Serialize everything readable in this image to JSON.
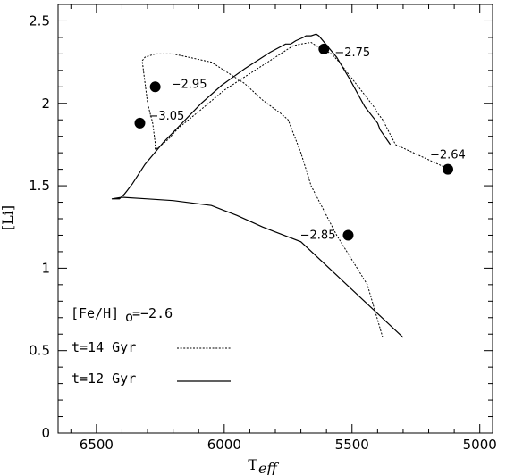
{
  "chart_data": {
    "type": "line",
    "xlabel": "T",
    "xlabel_sub": "eff",
    "ylabel": "[Li]",
    "xlim": [
      6650,
      4950
    ],
    "ylim": [
      0,
      2.6
    ],
    "x_reversed": true,
    "grid": false,
    "xticks": [
      6500,
      6000,
      5500,
      5000
    ],
    "xtick_labels": [
      "6500",
      "6000",
      "5500",
      "5000"
    ],
    "yticks": [
      0,
      0.5,
      1,
      1.5,
      2,
      2.5
    ],
    "ytick_labels": [
      "0",
      "0.5",
      "1",
      "1.5",
      "2",
      "2.5"
    ],
    "legend": {
      "position": "bottom-left",
      "header": "[Fe/H]",
      "header_sub": "o",
      "header_value": "=−2.6",
      "entries": [
        {
          "label": "t=14 Gyr",
          "style": "dotted"
        },
        {
          "label": "t=12 Gyr",
          "style": "solid"
        }
      ]
    },
    "series": [
      {
        "name": "t=12 Gyr",
        "style": "solid",
        "x": [
          5300,
          5700,
          5800,
          5850,
          5950,
          6000,
          6050,
          6200,
          6300,
          6400,
          6440,
          6430,
          6420,
          6410,
          6390,
          6380,
          6370,
          6360,
          6310,
          6240,
          6090,
          6010,
          5920,
          5820,
          5760,
          5740,
          5720,
          5690,
          5680,
          5660,
          5640,
          5630,
          5560,
          5510,
          5450,
          5400,
          5390,
          5350
        ],
        "y": [
          0.58,
          1.16,
          1.22,
          1.25,
          1.32,
          1.35,
          1.38,
          1.41,
          1.42,
          1.43,
          1.42,
          1.42,
          1.42,
          1.42,
          1.45,
          1.47,
          1.49,
          1.51,
          1.63,
          1.76,
          2.0,
          2.11,
          2.21,
          2.31,
          2.36,
          2.36,
          2.38,
          2.4,
          2.41,
          2.41,
          2.42,
          2.41,
          2.28,
          2.15,
          1.98,
          1.88,
          1.84,
          1.75
        ]
      },
      {
        "name": "t=14 Gyr",
        "style": "dotted",
        "x": [
          5380,
          5440,
          5560,
          5660,
          5700,
          5730,
          5750,
          5780,
          5850,
          5920,
          6050,
          6200,
          6270,
          6290,
          6310,
          6320,
          6320,
          6300,
          6280,
          6270,
          6270,
          6260,
          6220,
          6180,
          6100,
          6000,
          5900,
          5800,
          5760,
          5730,
          5700,
          5660,
          5640,
          5580,
          5550,
          5500,
          5450,
          5410,
          5400,
          5380,
          5360,
          5330,
          5120
        ],
        "y": [
          0.58,
          0.9,
          1.2,
          1.5,
          1.7,
          1.82,
          1.9,
          1.94,
          2.02,
          2.12,
          2.25,
          2.3,
          2.3,
          2.29,
          2.28,
          2.26,
          2.25,
          2.0,
          1.88,
          1.76,
          1.72,
          1.73,
          1.78,
          1.85,
          1.95,
          2.08,
          2.18,
          2.28,
          2.32,
          2.35,
          2.36,
          2.37,
          2.35,
          2.3,
          2.25,
          2.15,
          2.05,
          1.97,
          1.94,
          1.9,
          1.84,
          1.75,
          1.6
        ]
      }
    ],
    "points": [
      {
        "x": 6270,
        "y": 2.1,
        "label": "−2.95"
      },
      {
        "x": 6330,
        "y": 1.88,
        "label": "−3.05"
      },
      {
        "x": 5610,
        "y": 2.33,
        "label": "−2.75"
      },
      {
        "x": 5125,
        "y": 1.6,
        "label": "−2.64"
      },
      {
        "x": 5515,
        "y": 1.2,
        "label": "−2.85"
      }
    ]
  }
}
